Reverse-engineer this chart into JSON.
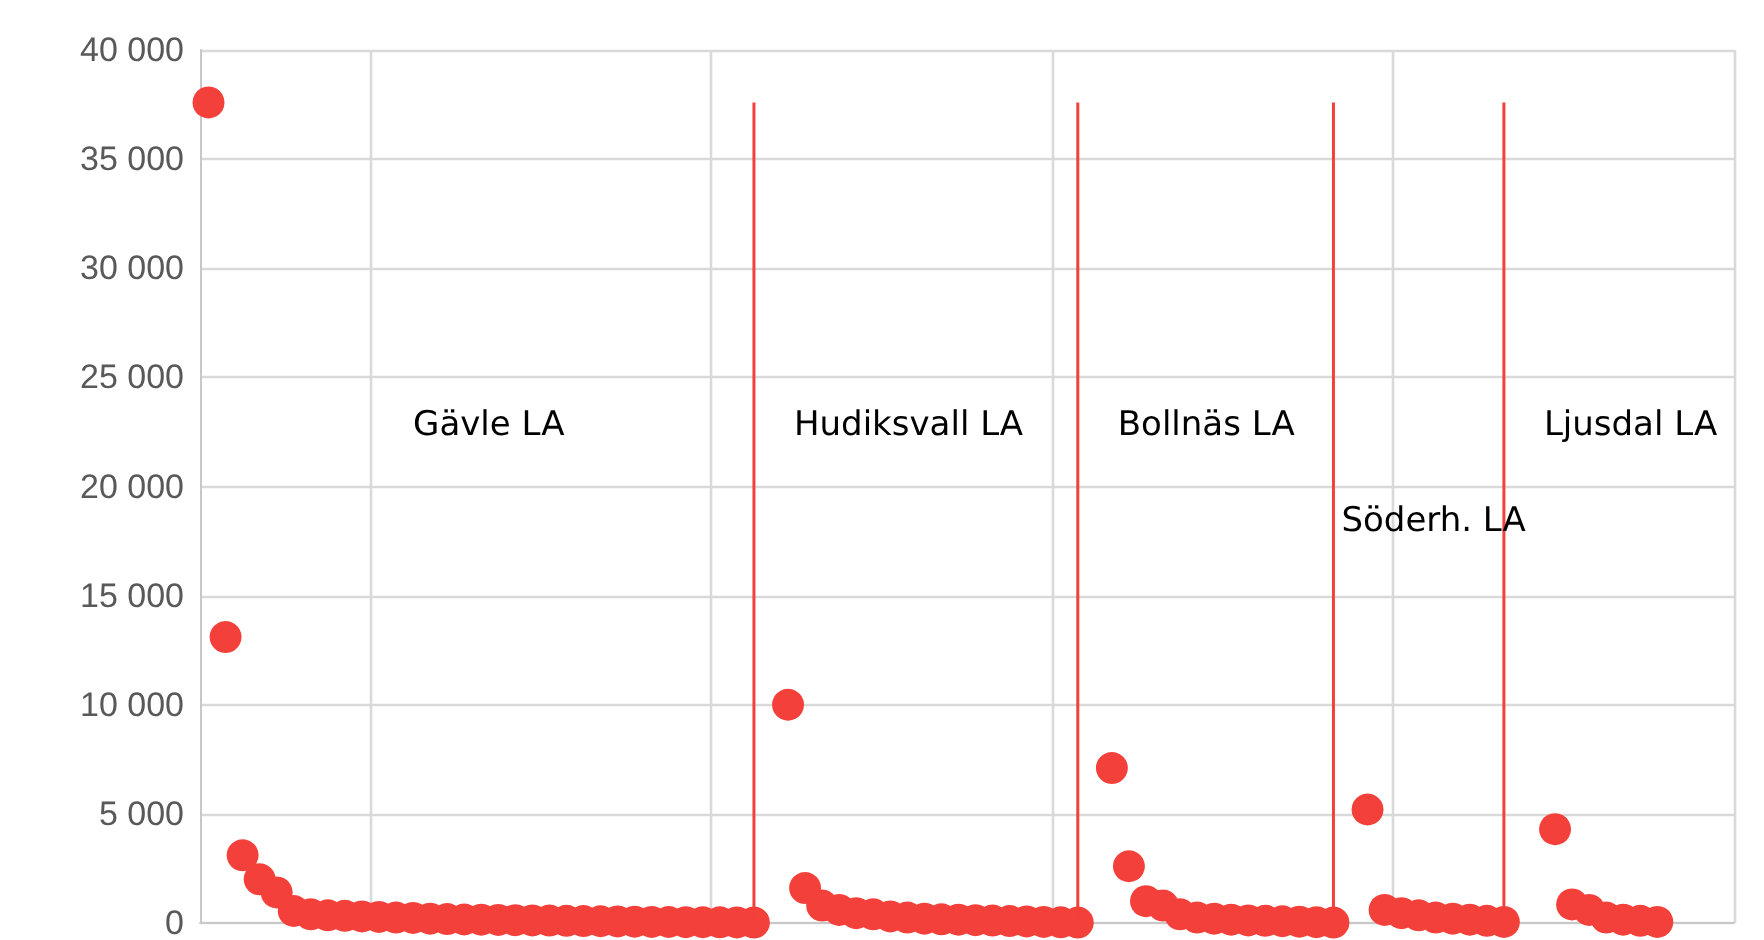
{
  "chart_data": {
    "type": "scatter",
    "categories": [
      null,
      null,
      null,
      null,
      null,
      null,
      null,
      null,
      null,
      null,
      null,
      null,
      null,
      null,
      null,
      null,
      null,
      null,
      null,
      null,
      null,
      null,
      null,
      null,
      null,
      null,
      null,
      null,
      null,
      null,
      null,
      null,
      null,
      null,
      null,
      null,
      null,
      null,
      null,
      null,
      null,
      null,
      null,
      null,
      null,
      null,
      null,
      null,
      null,
      null,
      null,
      null,
      null,
      null,
      null,
      null,
      null,
      null,
      null,
      null,
      null,
      null,
      null,
      null,
      null,
      null,
      null,
      null,
      null,
      null,
      null,
      null,
      null,
      null,
      null,
      null,
      null,
      null,
      null,
      null,
      null,
      null,
      null,
      null,
      null,
      null,
      null,
      null,
      null,
      null
    ],
    "ylim": [
      0,
      40000
    ],
    "yticks": [
      {
        "value": 0,
        "label": "0"
      },
      {
        "value": 5000,
        "label": "5 000"
      },
      {
        "value": 10000,
        "label": "10 000"
      },
      {
        "value": 15000,
        "label": "15 000"
      },
      {
        "value": 20000,
        "label": "20 000"
      },
      {
        "value": 25000,
        "label": "25 000"
      },
      {
        "value": 30000,
        "label": "30 000"
      },
      {
        "value": 35000,
        "label": "35 000"
      },
      {
        "value": 40000,
        "label": "40 000"
      }
    ],
    "tick_labels": "y",
    "grid": true,
    "marker": "circle",
    "color": "#f4403a",
    "values": [
      37600,
      13100,
      3100,
      2000,
      1400,
      550,
      400,
      350,
      330,
      300,
      280,
      250,
      230,
      200,
      180,
      160,
      150,
      140,
      130,
      120,
      110,
      100,
      90,
      80,
      70,
      60,
      50,
      45,
      40,
      35,
      30,
      25,
      20,
      null,
      10000,
      1600,
      800,
      600,
      450,
      400,
      300,
      250,
      200,
      170,
      150,
      130,
      110,
      90,
      70,
      50,
      30,
      20,
      null,
      7100,
      2600,
      1000,
      800,
      400,
      250,
      200,
      150,
      120,
      100,
      80,
      60,
      40,
      20,
      null,
      5200,
      600,
      450,
      350,
      250,
      200,
      150,
      100,
      50,
      null,
      null,
      4300,
      850,
      600,
      250,
      150,
      100,
      50,
      null,
      null,
      null,
      null
    ],
    "annotations": [
      "Gävle LA",
      "Hudiksvall LA",
      "Bollnäs LA",
      "Söderh. LA",
      "Ljusdal LA"
    ]
  }
}
